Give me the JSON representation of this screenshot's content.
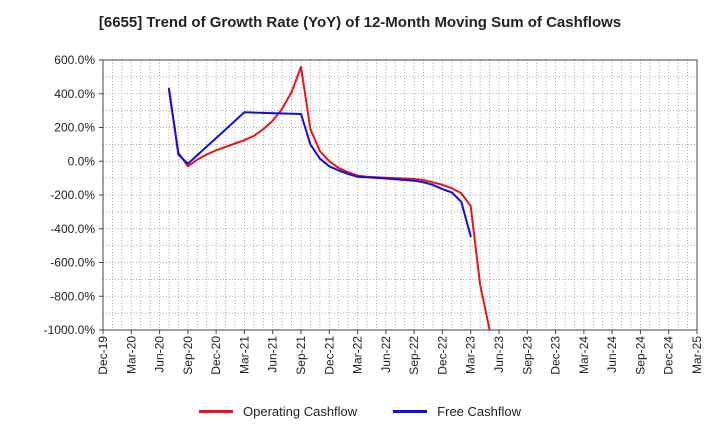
{
  "chart_data": {
    "type": "line",
    "title": "[6655]  Trend of Growth Rate (YoY) of 12-Month Moving Sum of Cashflows",
    "xlabel": "",
    "ylabel": "",
    "x_ticks": [
      "Dec-19",
      "Mar-20",
      "Jun-20",
      "Sep-20",
      "Dec-20",
      "Mar-21",
      "Jun-21",
      "Sep-21",
      "Dec-21",
      "Mar-22",
      "Jun-22",
      "Sep-22",
      "Dec-22",
      "Mar-23",
      "Jun-23",
      "Sep-23",
      "Dec-23",
      "Mar-24",
      "Jun-24",
      "Sep-24",
      "Dec-24",
      "Mar-25"
    ],
    "y_ticks": [
      "600.0%",
      "400.0%",
      "200.0%",
      "0.0%",
      "-200.0%",
      "-400.0%",
      "-600.0%",
      "-800.0%",
      "-1000.0%"
    ],
    "ylim": [
      -1000,
      600
    ],
    "grid": true,
    "legend_position": "bottom",
    "series": [
      {
        "name": "Operating Cashflow",
        "color": "#e8141c",
        "points": [
          [
            "Jul-20",
            420
          ],
          [
            "Aug-20",
            50
          ],
          [
            "Sep-20",
            -30
          ],
          [
            "Oct-20",
            10
          ],
          [
            "Nov-20",
            40
          ],
          [
            "Dec-20",
            65
          ],
          [
            "Jan-21",
            85
          ],
          [
            "Feb-21",
            105
          ],
          [
            "Mar-21",
            125
          ],
          [
            "Apr-21",
            150
          ],
          [
            "May-21",
            190
          ],
          [
            "Jun-21",
            240
          ],
          [
            "Jul-21",
            310
          ],
          [
            "Aug-21",
            410
          ],
          [
            "Sep-21",
            560
          ],
          [
            "Oct-21",
            190
          ],
          [
            "Nov-21",
            60
          ],
          [
            "Dec-21",
            0
          ],
          [
            "Jan-22",
            -40
          ],
          [
            "Feb-22",
            -65
          ],
          [
            "Mar-22",
            -85
          ],
          [
            "Apr-22",
            -92
          ],
          [
            "May-22",
            -95
          ],
          [
            "Jun-22",
            -98
          ],
          [
            "Jul-22",
            -100
          ],
          [
            "Aug-22",
            -102
          ],
          [
            "Sep-22",
            -105
          ],
          [
            "Oct-22",
            -112
          ],
          [
            "Nov-22",
            -125
          ],
          [
            "Dec-22",
            -140
          ],
          [
            "Jan-23",
            -160
          ],
          [
            "Feb-23",
            -190
          ],
          [
            "Mar-23",
            -265
          ],
          [
            "Apr-23",
            -730
          ],
          [
            "May-23",
            -1000
          ]
        ]
      },
      {
        "name": "Free Cashflow",
        "color": "#1010dd",
        "points": [
          [
            "Jul-20",
            430
          ],
          [
            "Aug-20",
            40
          ],
          [
            "Sep-20",
            -15
          ],
          [
            "Mar-21",
            290
          ],
          [
            "Sep-21",
            280
          ],
          [
            "Oct-21",
            100
          ],
          [
            "Nov-21",
            15
          ],
          [
            "Dec-21",
            -30
          ],
          [
            "Jan-22",
            -55
          ],
          [
            "Feb-22",
            -75
          ],
          [
            "Mar-22",
            -92
          ],
          [
            "Jun-22",
            -102
          ],
          [
            "Sep-22",
            -115
          ],
          [
            "Oct-22",
            -125
          ],
          [
            "Nov-22",
            -140
          ],
          [
            "Dec-22",
            -165
          ],
          [
            "Jan-23",
            -185
          ],
          [
            "Feb-23",
            -240
          ],
          [
            "Mar-23",
            -445
          ]
        ]
      }
    ]
  }
}
